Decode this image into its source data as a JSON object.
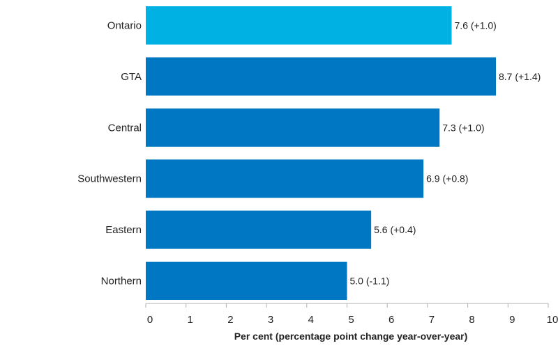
{
  "chart_data": {
    "type": "bar",
    "orientation": "horizontal",
    "title": "",
    "xlabel": "Per cent (percentage point change year-over-year)",
    "ylabel": "",
    "xlim": [
      0,
      10
    ],
    "ticks": [
      "0",
      "1",
      "2",
      "3",
      "4",
      "5",
      "6",
      "7",
      "8",
      "9",
      "10"
    ],
    "grid": false,
    "categories": [
      "Ontario",
      "GTA",
      "Central",
      "Southwestern",
      "Eastern",
      "Northern"
    ],
    "values": [
      7.6,
      8.7,
      7.3,
      6.9,
      5.6,
      5.0
    ],
    "changes": [
      1.0,
      1.4,
      1.0,
      0.8,
      0.4,
      -1.1
    ],
    "data_labels": [
      "7.6 (+1.0)",
      "8.7 (+1.4)",
      "7.3 (+1.0)",
      "6.9 (+0.8)",
      "5.6 (+0.4)",
      "5.0 (-1.1)"
    ],
    "colors": [
      "#00b2e3",
      "#0077c2",
      "#0077c2",
      "#0077c2",
      "#0077c2",
      "#0077c2"
    ],
    "axis_color": "#b0b0b0"
  }
}
